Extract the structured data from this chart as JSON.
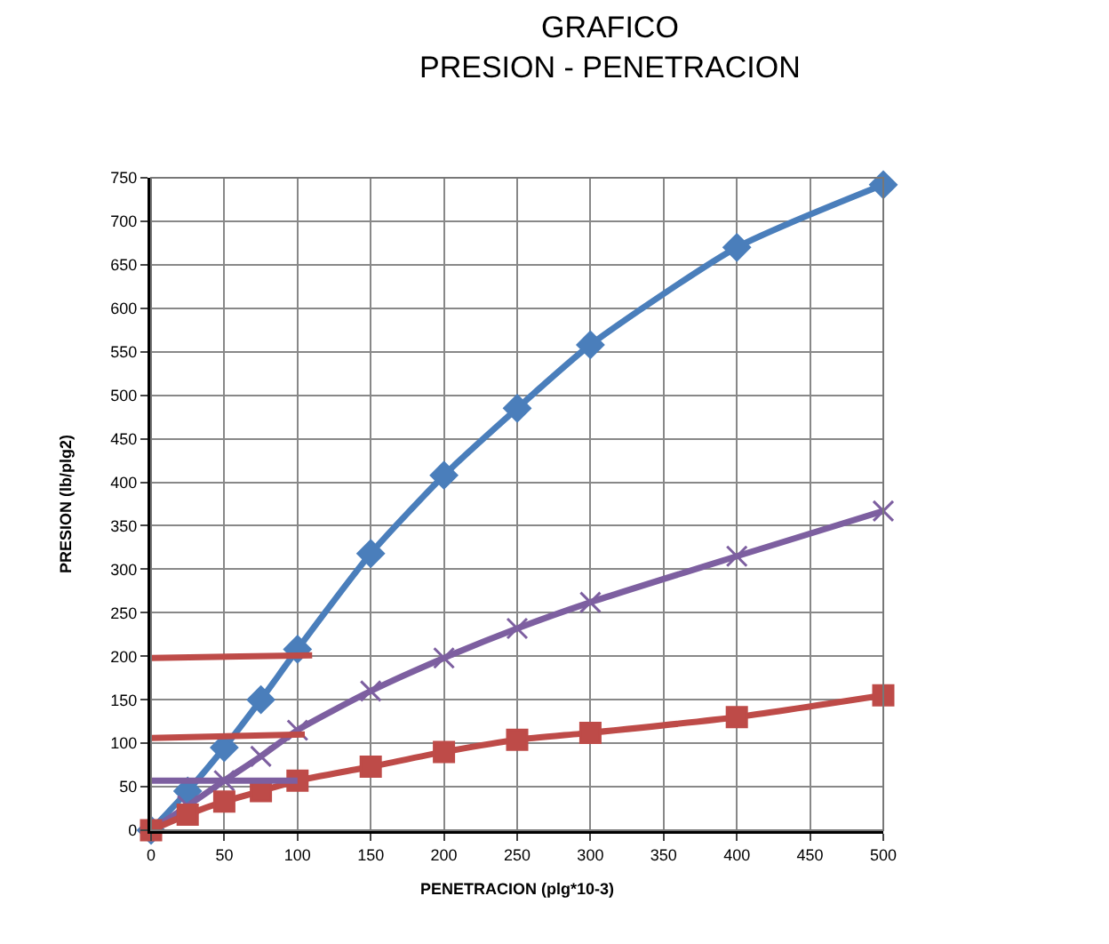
{
  "chart_data": {
    "type": "line",
    "title": "GRAFICO",
    "subtitle": "PRESION - PENETRACION",
    "xlabel": "PENETRACION (plg*10-3)",
    "ylabel": "PRESION (lb/plg2)",
    "xlim": [
      0,
      500
    ],
    "xticks": [
      0,
      50,
      100,
      150,
      200,
      250,
      300,
      350,
      400,
      450,
      500
    ],
    "ylim": [
      0,
      750
    ],
    "yticks": [
      0,
      50,
      100,
      150,
      200,
      250,
      300,
      350,
      400,
      450,
      500,
      550,
      600,
      650,
      700,
      750
    ],
    "grid": true,
    "line_style": "solid",
    "series": [
      {
        "color": "#4a7ebb",
        "marker": "diamond",
        "x": [
          0,
          25,
          50,
          75,
          100,
          150,
          200,
          250,
          300,
          400,
          500
        ],
        "values": [
          0,
          45,
          95,
          150,
          208,
          318,
          408,
          485,
          558,
          670,
          742
        ]
      },
      {
        "color": "#7d5fa0",
        "marker": "cross",
        "x": [
          0,
          25,
          50,
          75,
          100,
          150,
          200,
          250,
          300,
          400,
          500
        ],
        "values": [
          0,
          28,
          57,
          85,
          115,
          160,
          198,
          232,
          262,
          315,
          367
        ]
      },
      {
        "color": "#be4b48",
        "marker": "square",
        "x": [
          0,
          25,
          50,
          75,
          100,
          150,
          200,
          250,
          300,
          400,
          500
        ],
        "values": [
          0,
          18,
          33,
          45,
          57,
          73,
          90,
          104,
          112,
          130,
          155
        ]
      },
      {
        "color": "#be4b48",
        "marker": "none",
        "x": [
          0,
          110
        ],
        "values": [
          198,
          201
        ]
      },
      {
        "color": "#be4b48",
        "marker": "none",
        "x": [
          0,
          105
        ],
        "values": [
          106,
          110
        ]
      },
      {
        "color": "#7d5fa0",
        "marker": "none",
        "x": [
          0,
          100
        ],
        "values": [
          57,
          57
        ]
      }
    ]
  }
}
